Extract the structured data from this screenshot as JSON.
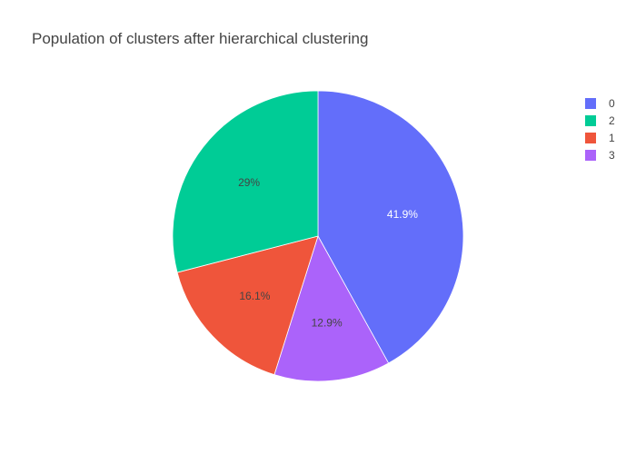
{
  "chart_data": {
    "type": "pie",
    "title": "Population of clusters after hierarchical clustering",
    "slices": [
      {
        "label": "0",
        "value": 41.9,
        "display": "41.9%",
        "color": "#636efa",
        "text_color": "#ffffff"
      },
      {
        "label": "3",
        "value": 12.9,
        "display": "12.9%",
        "color": "#ab63fa",
        "text_color": "#444444"
      },
      {
        "label": "1",
        "value": 16.1,
        "display": "16.1%",
        "color": "#ef553b",
        "text_color": "#444444"
      },
      {
        "label": "2",
        "value": 29.0,
        "display": "29%",
        "color": "#00cc96",
        "text_color": "#444444"
      }
    ],
    "legend": {
      "placement": "top-right",
      "entries": [
        {
          "label": "0",
          "color": "#636efa"
        },
        {
          "label": "2",
          "color": "#00cc96"
        },
        {
          "label": "1",
          "color": "#ef553b"
        },
        {
          "label": "3",
          "color": "#ab63fa"
        }
      ]
    }
  }
}
